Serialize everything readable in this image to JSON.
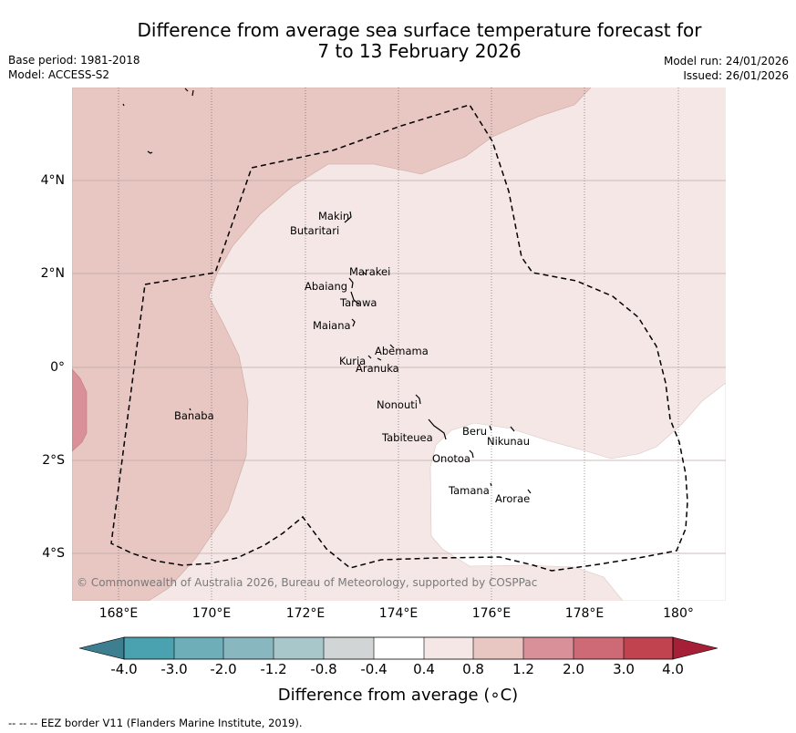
{
  "header": {
    "title_line1": "Difference from average sea surface temperature forecast for",
    "title_line2": "7 to 13 February 2026",
    "base_period": "Base period: 1981-2018",
    "model": "Model: ACCESS-S2",
    "model_run": "Model run: 24/01/2026",
    "issued": "Issued: 26/01/2026"
  },
  "map": {
    "longitude_ticks": [
      "168°E",
      "170°E",
      "172°E",
      "174°E",
      "176°E",
      "178°E",
      "180°"
    ],
    "latitude_ticks": [
      "4°N",
      "2°N",
      "0°",
      "2°S",
      "4°S"
    ],
    "islands": [
      {
        "name": "Makin"
      },
      {
        "name": "Butaritari"
      },
      {
        "name": "Marakei"
      },
      {
        "name": "Abaiang"
      },
      {
        "name": "Tarawa"
      },
      {
        "name": "Maiana"
      },
      {
        "name": "Abemama"
      },
      {
        "name": "Kuria"
      },
      {
        "name": "Aranuka"
      },
      {
        "name": "Nonouti"
      },
      {
        "name": "Banaba"
      },
      {
        "name": "Tabiteuea"
      },
      {
        "name": "Beru"
      },
      {
        "name": "Nikunau"
      },
      {
        "name": "Onotoa"
      },
      {
        "name": "Tamana"
      },
      {
        "name": "Arorae"
      }
    ],
    "copyright": "© Commonwealth of Australia 2026, Bureau of Meteorology, supported by COSPPac"
  },
  "colorbar": {
    "title": "Difference from average (∘C)",
    "tick_labels": [
      "-4.0",
      "-3.0",
      "-2.0",
      "-1.2",
      "-0.8",
      "-0.4",
      "0.4",
      "0.8",
      "1.2",
      "2.0",
      "3.0",
      "4.0"
    ],
    "colors": [
      "#3d7f90",
      "#4aa2b0",
      "#6eaeb9",
      "#88b7c0",
      "#a8c7cb",
      "#d2d5d5",
      "#ffffff",
      "#f5e7e5",
      "#e8c6c1",
      "#d99099",
      "#cd6a76",
      "#c0434f",
      "#a51f36"
    ]
  },
  "footnote": "--  --  -- EEZ border V11 (Flanders Marine Institute, 2019)."
}
